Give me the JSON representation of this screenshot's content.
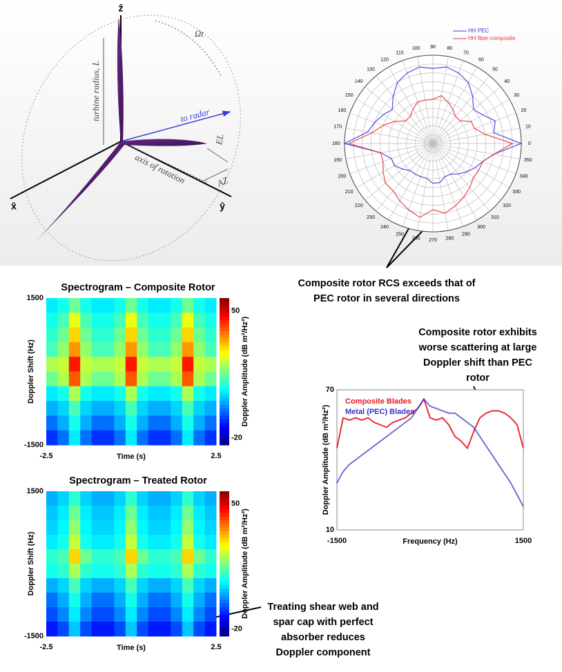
{
  "diagram": {
    "z_axis": "ẑ",
    "x_axis": "x̂",
    "y_axis": "ŷ",
    "rotation": "Ωt",
    "radius": "turbine radius, L",
    "radar": "to radar",
    "elevation": "EL",
    "axis": "axis of rotation",
    "azimuth": "AZ"
  },
  "annotations": [
    [
      "Composite rotor RCS exceeds that of",
      "PEC rotor in several directions"
    ],
    [
      "Composite rotor exhibits",
      "worse scattering at large",
      "Doppler shift than PEC",
      "rotor"
    ],
    [
      "Treating shear web and",
      "spar cap with perfect",
      "absorber reduces",
      "Doppler component"
    ]
  ],
  "chart_data": [
    {
      "type": "polar",
      "theta": [
        0,
        10,
        20,
        30,
        40,
        50,
        60,
        70,
        80,
        90,
        100,
        110,
        120,
        130,
        140,
        150,
        160,
        170,
        180,
        190,
        200,
        210,
        220,
        230,
        240,
        250,
        260,
        270,
        280,
        290,
        300,
        310,
        320,
        330,
        340,
        350
      ],
      "rlim": [
        0,
        10
      ],
      "series": [
        {
          "name": "HH PEC",
          "color": "#3b3bdb",
          "values": [
            10,
            7,
            7.5,
            6.5,
            6,
            7,
            8,
            8.5,
            8.8,
            8.5,
            8.8,
            8.5,
            8,
            7,
            6,
            6.5,
            7,
            7.5,
            10,
            6,
            5,
            5,
            4.5,
            4,
            4,
            4,
            4,
            4.5,
            4.5,
            4,
            4,
            4.5,
            5,
            5.5,
            6,
            7
          ]
        },
        {
          "name": "HH fiber-composite",
          "color": "#e8343b",
          "values": [
            9,
            6,
            5,
            5,
            4,
            4,
            4.5,
            5,
            5.5,
            5,
            5,
            5,
            4.5,
            4,
            4,
            5,
            6,
            7,
            9.5,
            6,
            6,
            6.5,
            7,
            7,
            7.5,
            8,
            8.5,
            7.5,
            8,
            7.5,
            7,
            6.5,
            6,
            6,
            6,
            7
          ]
        }
      ]
    },
    {
      "type": "heatmap",
      "title": "Spectrogram – Composite Rotor",
      "xlabel": "Time (s)",
      "ylabel": "Doppler Shift (Hz)",
      "xlim": [
        -2.5,
        2.5
      ],
      "xticks": [
        -2.5,
        2.5
      ],
      "ylim": [
        -1500,
        1500
      ],
      "yticks": [
        -1500,
        1500
      ],
      "clim": [
        -24,
        57
      ],
      "cticks": [
        -20,
        50
      ],
      "colorbar_label": "Doppler Amplitude (dB m²/Hz²)",
      "z": [
        [
          5,
          8,
          15,
          8,
          5,
          5,
          8,
          15,
          8,
          5,
          5,
          8,
          15,
          8,
          5
        ],
        [
          8,
          12,
          25,
          12,
          8,
          8,
          12,
          25,
          12,
          8,
          8,
          12,
          25,
          12,
          8
        ],
        [
          10,
          15,
          30,
          15,
          10,
          10,
          15,
          30,
          15,
          10,
          10,
          15,
          30,
          15,
          10
        ],
        [
          12,
          18,
          35,
          18,
          12,
          12,
          18,
          35,
          18,
          12,
          12,
          18,
          35,
          18,
          12
        ],
        [
          20,
          22,
          45,
          22,
          20,
          20,
          22,
          45,
          22,
          20,
          20,
          22,
          45,
          22,
          20
        ],
        [
          15,
          20,
          40,
          20,
          15,
          15,
          20,
          40,
          20,
          15,
          15,
          20,
          40,
          20,
          15
        ],
        [
          5,
          8,
          20,
          8,
          5,
          5,
          8,
          20,
          8,
          5,
          5,
          8,
          20,
          8,
          5
        ],
        [
          0,
          3,
          12,
          3,
          0,
          0,
          3,
          12,
          3,
          0,
          0,
          3,
          12,
          3,
          0
        ],
        [
          -5,
          0,
          8,
          0,
          -5,
          -5,
          0,
          8,
          0,
          -5,
          -5,
          0,
          8,
          0,
          -5
        ],
        [
          -10,
          -5,
          5,
          -5,
          -10,
          -10,
          -5,
          5,
          -5,
          -10,
          -10,
          -5,
          5,
          -5,
          -10
        ]
      ]
    },
    {
      "type": "heatmap",
      "title": "Spectrogram – Treated Rotor",
      "xlabel": "Time (s)",
      "ylabel": "Doppler Shift (Hz)",
      "xlim": [
        -2.5,
        2.5
      ],
      "xticks": [
        -2.5,
        2.5
      ],
      "ylim": [
        -1500,
        1500
      ],
      "yticks": [
        -1500,
        1500
      ],
      "clim": [
        -24,
        57
      ],
      "cticks": [
        -20,
        50
      ],
      "colorbar_label": "Doppler Amplitude (dB m²/Hz²)",
      "z": [
        [
          0,
          3,
          10,
          3,
          0,
          0,
          3,
          10,
          3,
          0,
          0,
          3,
          10,
          3,
          0
        ],
        [
          2,
          5,
          15,
          5,
          2,
          2,
          5,
          15,
          5,
          2,
          2,
          5,
          15,
          5,
          2
        ],
        [
          3,
          6,
          18,
          6,
          3,
          3,
          6,
          18,
          6,
          3,
          3,
          6,
          18,
          6,
          3
        ],
        [
          5,
          8,
          22,
          8,
          5,
          5,
          8,
          22,
          8,
          5,
          5,
          8,
          22,
          8,
          5
        ],
        [
          10,
          12,
          30,
          15,
          10,
          10,
          12,
          30,
          15,
          10,
          10,
          12,
          30,
          15,
          10
        ],
        [
          8,
          10,
          20,
          10,
          8,
          8,
          10,
          20,
          10,
          8,
          8,
          10,
          20,
          10,
          8
        ],
        [
          0,
          3,
          12,
          3,
          0,
          0,
          3,
          12,
          3,
          0,
          0,
          3,
          12,
          3,
          0
        ],
        [
          -5,
          0,
          8,
          0,
          -5,
          -5,
          0,
          8,
          0,
          -5,
          -5,
          0,
          8,
          0,
          -5
        ],
        [
          -8,
          -3,
          5,
          -3,
          -8,
          -8,
          -3,
          5,
          -3,
          -8,
          -8,
          -3,
          5,
          -3,
          -8
        ],
        [
          -12,
          -8,
          2,
          -8,
          -12,
          -12,
          -8,
          2,
          -8,
          -12,
          -12,
          -8,
          2,
          -8,
          -12
        ]
      ]
    },
    {
      "type": "line",
      "xlabel": "Frequency (Hz)",
      "ylabel": "Doppler Amplitude (dB m²/Hz²)",
      "xlim": [
        -1500,
        1500
      ],
      "xticks": [
        -1500,
        1500
      ],
      "ylim": [
        10,
        70
      ],
      "yticks": [
        10,
        70
      ],
      "x": [
        -1500,
        -1400,
        -1300,
        -1200,
        -1100,
        -1000,
        -900,
        -800,
        -700,
        -600,
        -500,
        -400,
        -300,
        -200,
        -100,
        0,
        100,
        200,
        300,
        400,
        500,
        600,
        700,
        800,
        900,
        1000,
        1100,
        1200,
        1300,
        1400,
        1500
      ],
      "series": [
        {
          "name": "Composite Blades",
          "color": "#e8141c",
          "values": [
            45,
            58,
            57,
            58,
            57,
            58,
            56,
            55,
            54,
            56,
            57,
            58,
            60,
            62,
            66,
            58,
            57,
            58,
            55,
            50,
            48,
            45,
            52,
            58,
            60,
            61,
            61,
            60,
            58,
            55,
            45
          ]
        },
        {
          "name": "Metal (PEC) Blades",
          "color": "#3232c8",
          "values": [
            30,
            35,
            38,
            40,
            42,
            44,
            46,
            48,
            50,
            52,
            54,
            56,
            58,
            62,
            66,
            63,
            62,
            61,
            60,
            60,
            58,
            56,
            54,
            50,
            46,
            42,
            38,
            34,
            30,
            25,
            20
          ]
        }
      ]
    }
  ]
}
